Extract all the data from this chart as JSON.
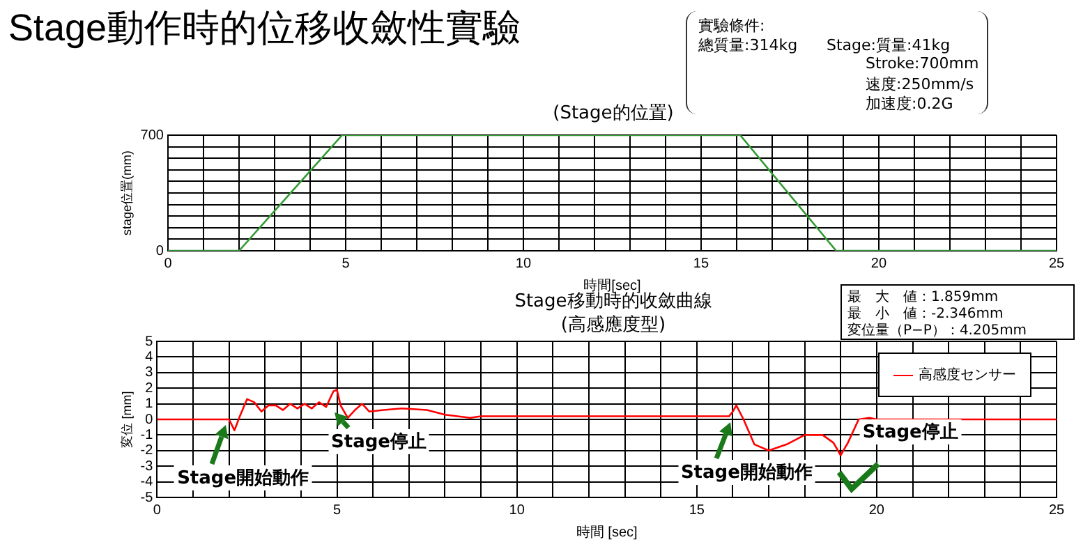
{
  "chart_data": [
    {
      "type": "line",
      "title": "Stage動作時的位移收斂性實驗",
      "subtitle": "(Stage的位置)",
      "xlabel": "時間[sec]",
      "ylabel": "stage位置(mm)",
      "annotations": [
        "實驗條件:",
        "總質量:314kg",
        "Stage:質量:41kg",
        "Stroke:700mm",
        "速度:250mm/s",
        "加速度:0.2G"
      ],
      "x": [
        0,
        2,
        4.9,
        16.1,
        18.8,
        25
      ],
      "series": [
        {
          "color": "#339933",
          "values": [
            0,
            0,
            700,
            700,
            0,
            0
          ]
        }
      ],
      "xlim": [
        0,
        25
      ],
      "ylim": [
        0,
        700
      ],
      "xticks": [
        0,
        {
          "value": 1,
          "label": null
        },
        {
          "value": 2,
          "label": null
        },
        {
          "value": 3,
          "label": null
        },
        {
          "value": 4,
          "label": null
        },
        5,
        {
          "value": 6,
          "label": null
        },
        {
          "value": 7,
          "label": null
        },
        {
          "value": 8,
          "label": null
        },
        {
          "value": 9,
          "label": null
        },
        10,
        {
          "value": 11,
          "label": null
        },
        {
          "value": 12,
          "label": null
        },
        {
          "value": 13,
          "label": null
        },
        {
          "value": 14,
          "label": null
        },
        15,
        {
          "value": 16,
          "label": null
        },
        {
          "value": 17,
          "label": null
        },
        {
          "value": 18,
          "label": null
        },
        {
          "value": 19,
          "label": null
        },
        20,
        {
          "value": 21,
          "label": null
        },
        {
          "value": 22,
          "label": null
        },
        {
          "value": 23,
          "label": null
        },
        {
          "value": 24,
          "label": null
        },
        25
      ],
      "yticks": [
        0,
        {
          "value": 70,
          "label": null
        },
        {
          "value": 140,
          "label": null
        },
        {
          "value": 210,
          "label": null
        },
        {
          "value": 280,
          "label": null
        },
        {
          "value": 350,
          "label": null
        },
        {
          "value": 420,
          "label": null
        },
        {
          "value": 490,
          "label": null
        },
        {
          "value": 560,
          "label": null
        },
        {
          "value": 630,
          "label": null
        },
        700
      ],
      "grid": true,
      "legend": false,
      "marker": "none",
      "line_style": "solid"
    },
    {
      "type": "line",
      "title": "Stage移動時的收斂曲線",
      "subtitle": "(高感應度型)",
      "xlabel": "時間 [sec]",
      "ylabel": "変位 [mm]",
      "annotations": [
        "最　大　値：1.859mm",
        "最　小　値：-2.346mm",
        "変位量（P−P）：4.205mm",
        {
          "text": "Stage開始動作",
          "x": 2,
          "y": 0
        },
        {
          "text": "Stage停止",
          "x": 5,
          "y": 0.8
        },
        {
          "text": "Stage開始動作",
          "x": 16,
          "y": 0.2
        },
        {
          "text": "Stage停止",
          "x": 19,
          "y": -2.3
        }
      ],
      "x": [
        0,
        1,
        2,
        2.15,
        2.3,
        2.5,
        2.7,
        2.9,
        3.1,
        3.3,
        3.5,
        3.7,
        3.9,
        4.1,
        4.3,
        4.5,
        4.7,
        4.9,
        5,
        5.1,
        5.3,
        5.5,
        5.7,
        5.9,
        6.3,
        6.8,
        7.5,
        8,
        8.7,
        9,
        10,
        12,
        14,
        15.9,
        16,
        16.1,
        16.3,
        16.6,
        17,
        17.5,
        18,
        18.5,
        18.8,
        19,
        19.2,
        19.5,
        19.8,
        20,
        21,
        23,
        25
      ],
      "series": [
        {
          "name": "高感度センサー",
          "color": "#ff0000",
          "values": [
            0,
            0,
            0,
            -0.7,
            0.2,
            1.3,
            1.1,
            0.5,
            0.9,
            0.9,
            0.6,
            1,
            0.7,
            1,
            0.7,
            1.1,
            0.8,
            1.8,
            1.9,
            0.9,
            0.1,
            0.6,
            1,
            0.5,
            0.6,
            0.7,
            0.6,
            0.3,
            0.1,
            0.2,
            0.2,
            0.2,
            0.2,
            0.2,
            0.5,
            0.9,
            0,
            -1.6,
            -2,
            -1.6,
            -1,
            -1,
            -1.5,
            -2.3,
            -1.5,
            0,
            0.1,
            0,
            0,
            0,
            0
          ]
        }
      ],
      "xlim": [
        0,
        25
      ],
      "ylim": [
        -5,
        5
      ],
      "xticks": [
        0,
        {
          "value": 1,
          "label": null
        },
        {
          "value": 2,
          "label": null
        },
        {
          "value": 3,
          "label": null
        },
        {
          "value": 4,
          "label": null
        },
        5,
        {
          "value": 6,
          "label": null
        },
        {
          "value": 7,
          "label": null
        },
        {
          "value": 8,
          "label": null
        },
        {
          "value": 9,
          "label": null
        },
        10,
        {
          "value": 11,
          "label": null
        },
        {
          "value": 12,
          "label": null
        },
        {
          "value": 13,
          "label": null
        },
        {
          "value": 14,
          "label": null
        },
        15,
        {
          "value": 16,
          "label": null
        },
        {
          "value": 17,
          "label": null
        },
        {
          "value": 18,
          "label": null
        },
        {
          "value": 19,
          "label": null
        },
        20,
        {
          "value": 21,
          "label": null
        },
        {
          "value": 22,
          "label": null
        },
        {
          "value": 23,
          "label": null
        },
        {
          "value": 24,
          "label": null
        },
        25
      ],
      "yticks": [
        -5,
        -4,
        -3,
        -2,
        -1,
        0,
        1,
        2,
        3,
        4,
        5
      ],
      "grid": true,
      "legend": "top right",
      "marker": "none",
      "line_style": "solid"
    }
  ]
}
